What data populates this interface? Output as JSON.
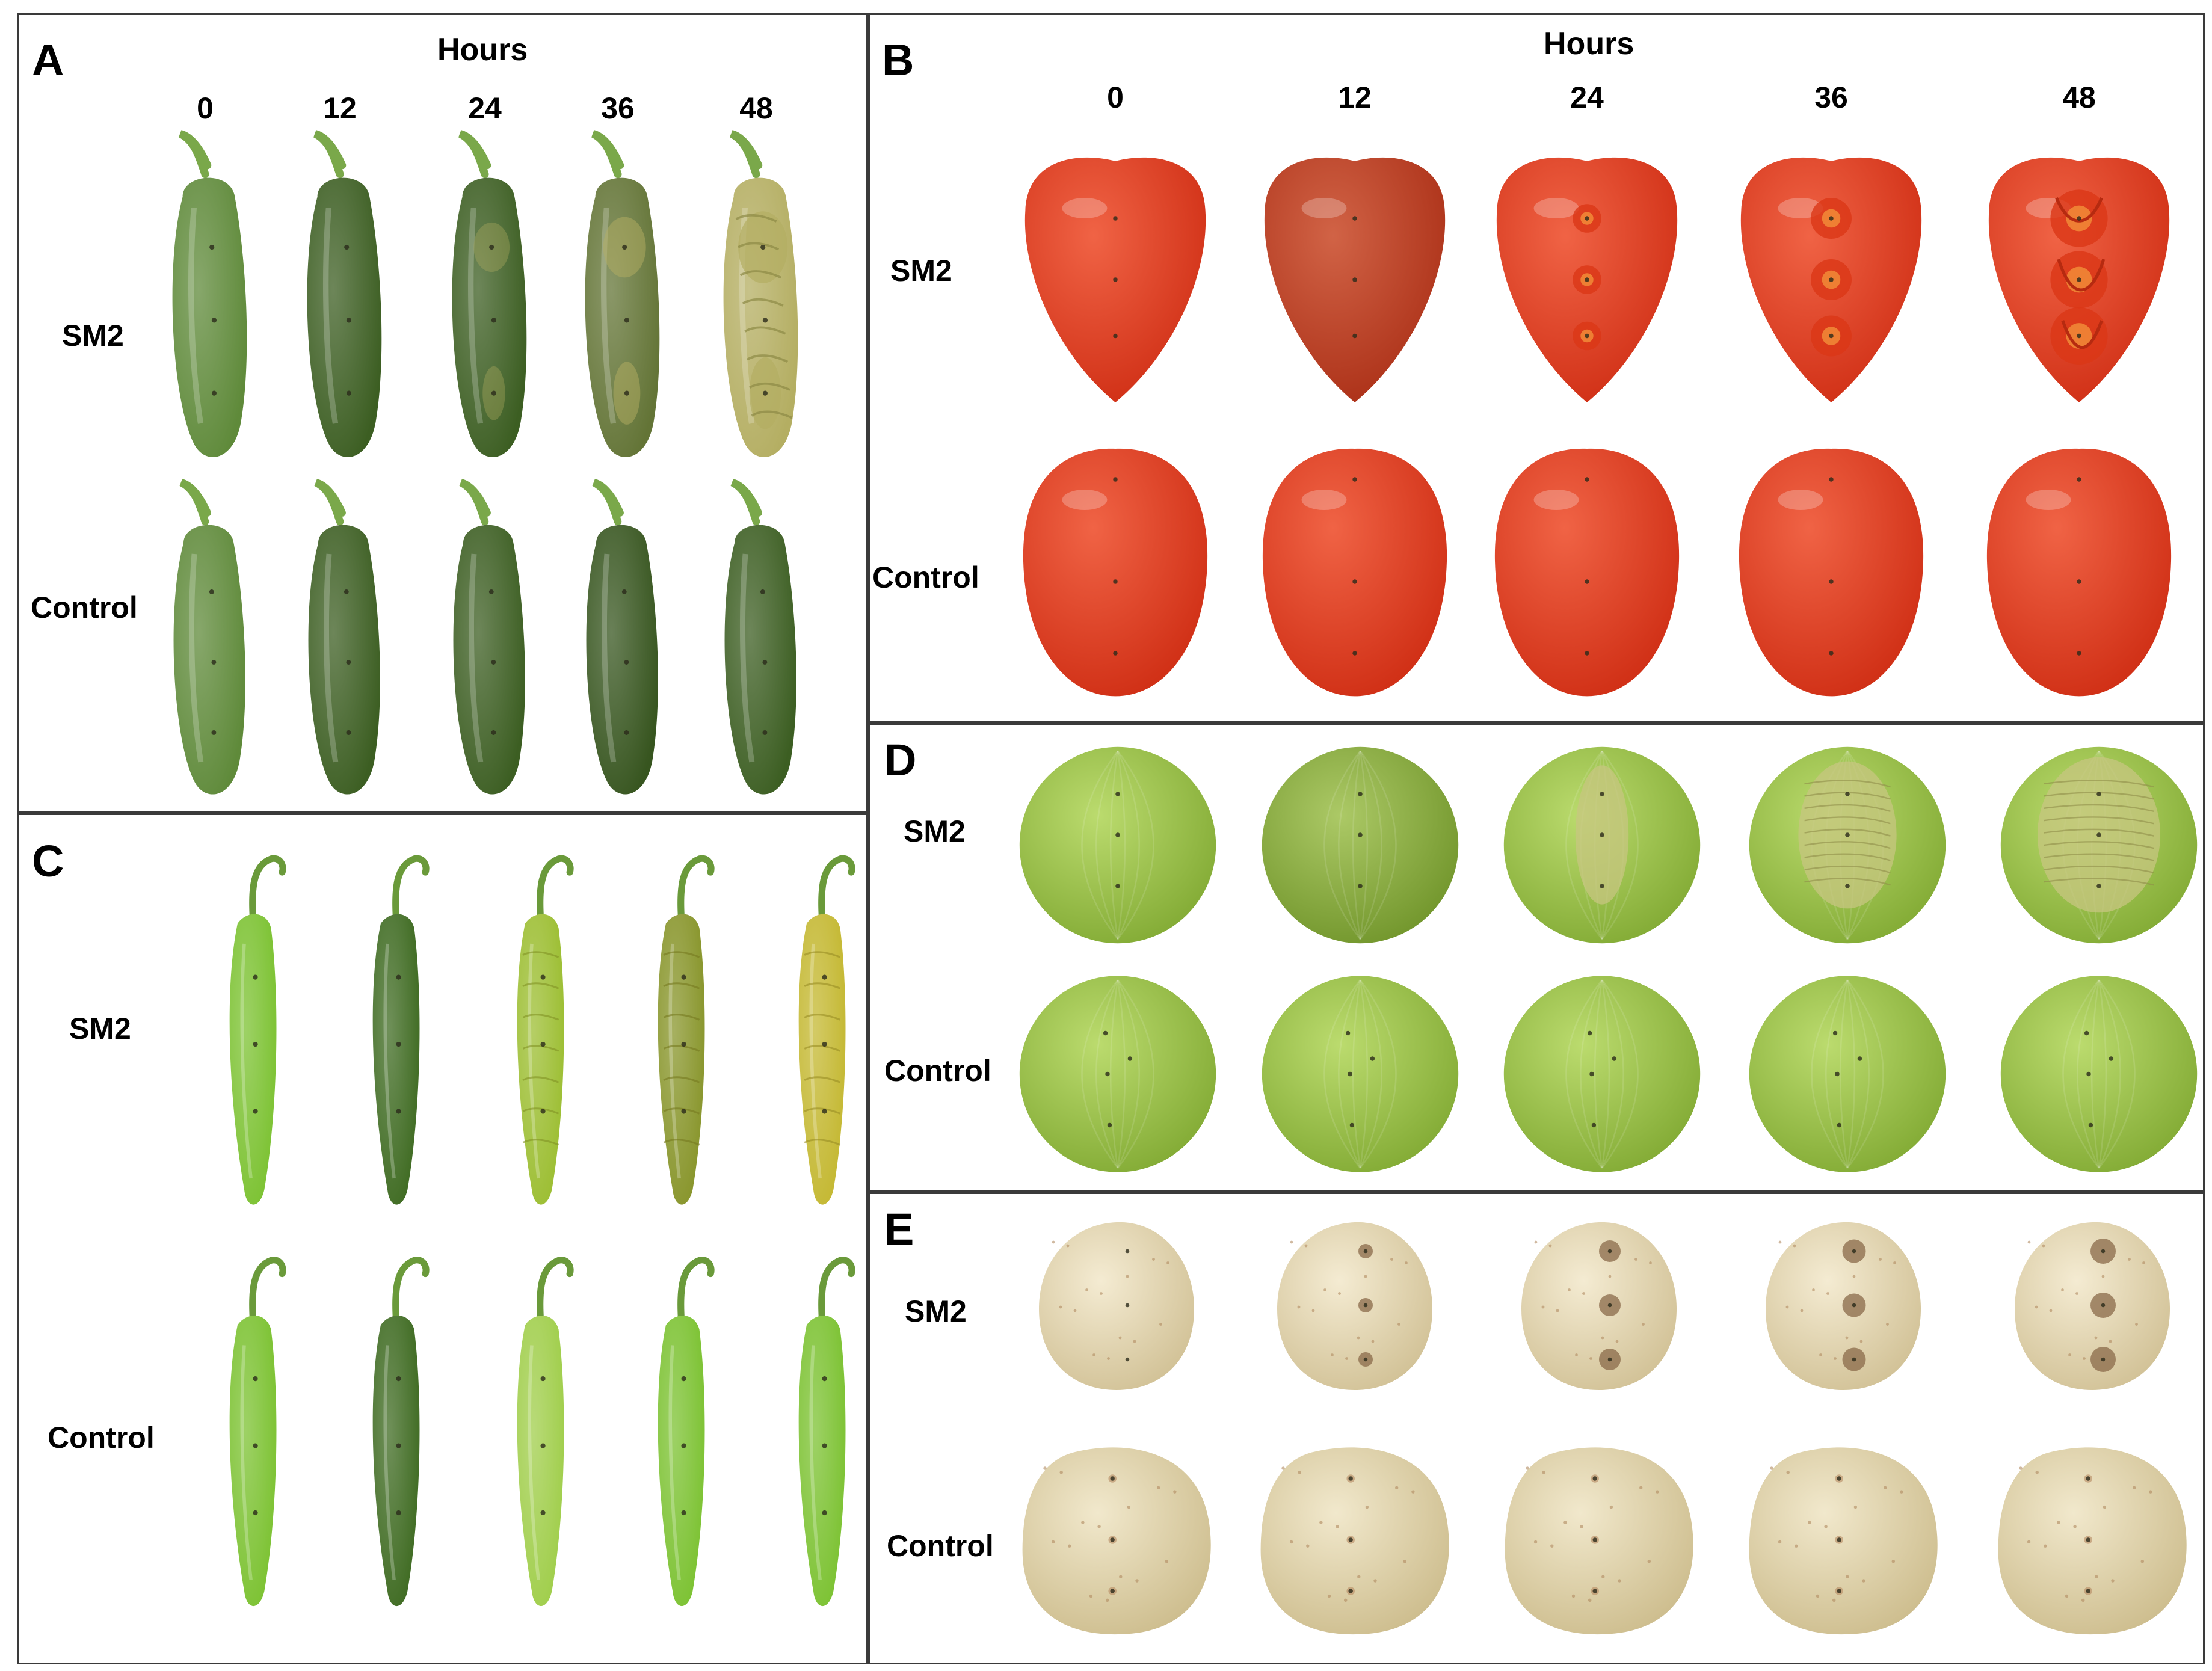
{
  "hours_label": "Hours",
  "hours": [
    "0",
    "12",
    "24",
    "36",
    "48"
  ],
  "rows": [
    "SM2",
    "Control"
  ],
  "colors": {
    "jalapeno_fresh": "#5f8a3a",
    "jalapeno_dark": "#3c5e22",
    "jalapeno_rot": "#b4ae62",
    "tomato": "#e8391c",
    "tomato_dark": "#b83a1e",
    "tomatillo": "#9cc742",
    "tomatillo_rot": "#c7c680",
    "serrano": "#7cc232",
    "serrano_dark": "#3f6b22",
    "serrano_rot": "#c4b832",
    "potato": "#e3d5a8",
    "lesion": "#8a6a4a"
  },
  "panels": [
    {
      "id": "A",
      "letter": "A",
      "specimen": "jalapeno"
    },
    {
      "id": "B",
      "letter": "B",
      "specimen": "tomato"
    },
    {
      "id": "C",
      "letter": "C",
      "specimen": "serrano"
    },
    {
      "id": "D",
      "letter": "D",
      "specimen": "tomatillo"
    },
    {
      "id": "E",
      "letter": "E",
      "specimen": "potato"
    }
  ]
}
